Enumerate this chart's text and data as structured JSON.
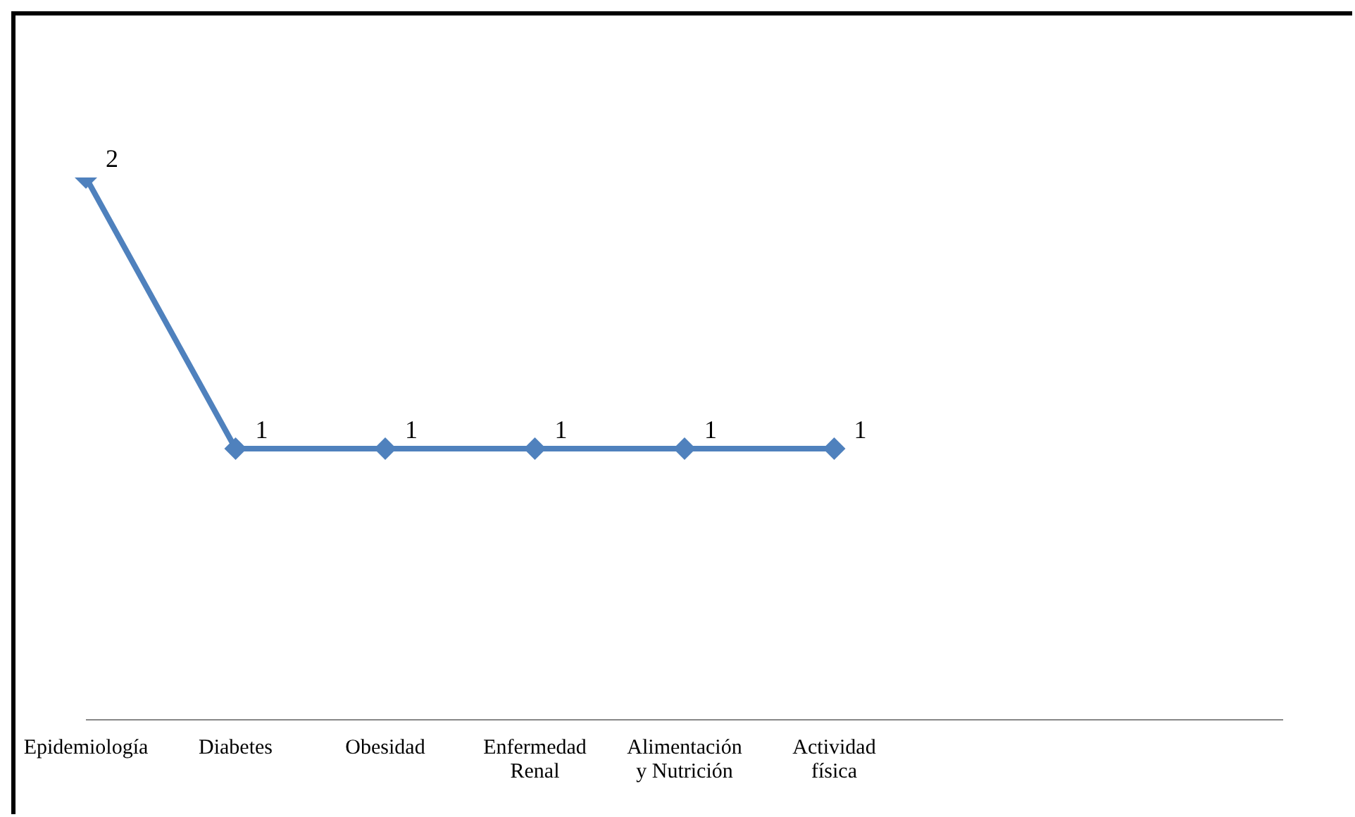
{
  "chart_data": {
    "type": "line",
    "categories": [
      "Epidemiología",
      "Diabetes",
      "Obesidad",
      "Enfermedad Renal",
      "Alimentación y Nutrición",
      "Actividad física",
      null,
      null,
      null
    ],
    "series": [
      {
        "color": "#4f81bd",
        "values": [
          2,
          1,
          1,
          1,
          1,
          1,
          null,
          null,
          null
        ]
      }
    ],
    "tick_labels": "x",
    "data_labels": true,
    "marker": "diamond",
    "line_style": "solid",
    "grid": false,
    "legend": false
  }
}
